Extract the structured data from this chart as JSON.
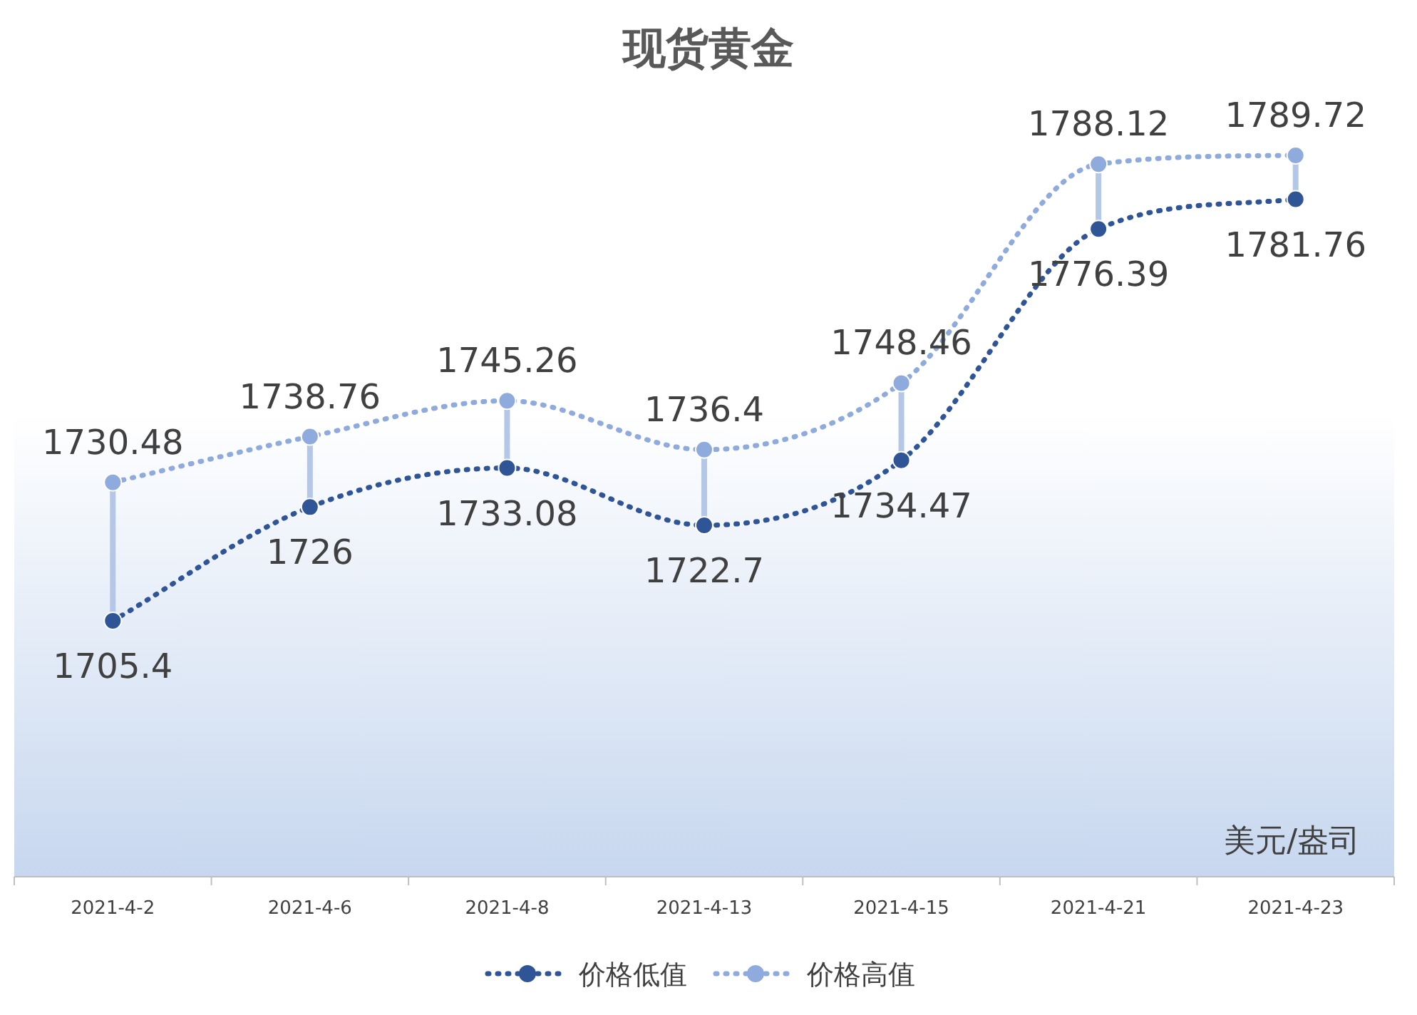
{
  "chart_data": {
    "type": "line",
    "title": "现货黄金",
    "categories": [
      "2021-4-2",
      "2021-4-6",
      "2021-4-8",
      "2021-4-13",
      "2021-4-15",
      "2021-4-21",
      "2021-4-23"
    ],
    "series": [
      {
        "name": "价格低值",
        "color": "#2f5597",
        "values": [
          1705.4,
          1726,
          1733.08,
          1722.7,
          1734.47,
          1776.39,
          1781.76
        ]
      },
      {
        "name": "价格高值",
        "color": "#8faadc",
        "values": [
          1730.48,
          1738.76,
          1745.26,
          1736.4,
          1748.46,
          1788.12,
          1789.72
        ]
      }
    ],
    "data_labels": true,
    "legend": "bottom",
    "marker": "circle",
    "line_style": "dotted",
    "annotations": [
      "美元/盎司"
    ]
  }
}
